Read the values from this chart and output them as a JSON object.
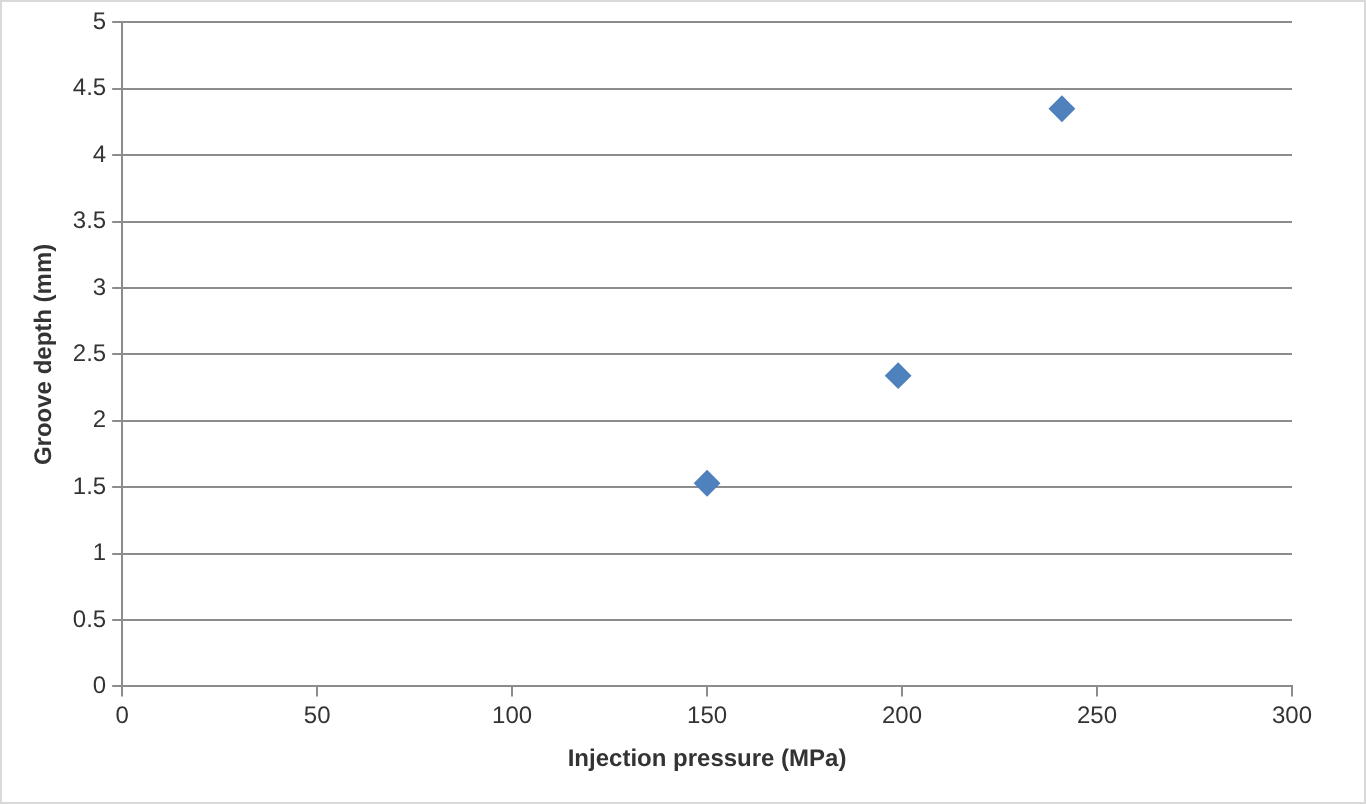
{
  "chart_data": {
    "type": "scatter",
    "xlabel": "Injection pressure (MPa)",
    "ylabel": "Groove depth (mm)",
    "x": [
      150,
      199,
      241
    ],
    "values": [
      1.53,
      2.34,
      4.35
    ],
    "color": "#4f81bd",
    "marker": "diamond",
    "xlim": [
      0,
      300
    ],
    "xticks": [
      0,
      50,
      100,
      150,
      200,
      250,
      300
    ],
    "ylim": [
      0,
      5
    ],
    "yticks": [
      0,
      0.5,
      1,
      1.5,
      2,
      2.5,
      3,
      3.5,
      4,
      4.5,
      5
    ],
    "grid": "y",
    "legend": false
  }
}
